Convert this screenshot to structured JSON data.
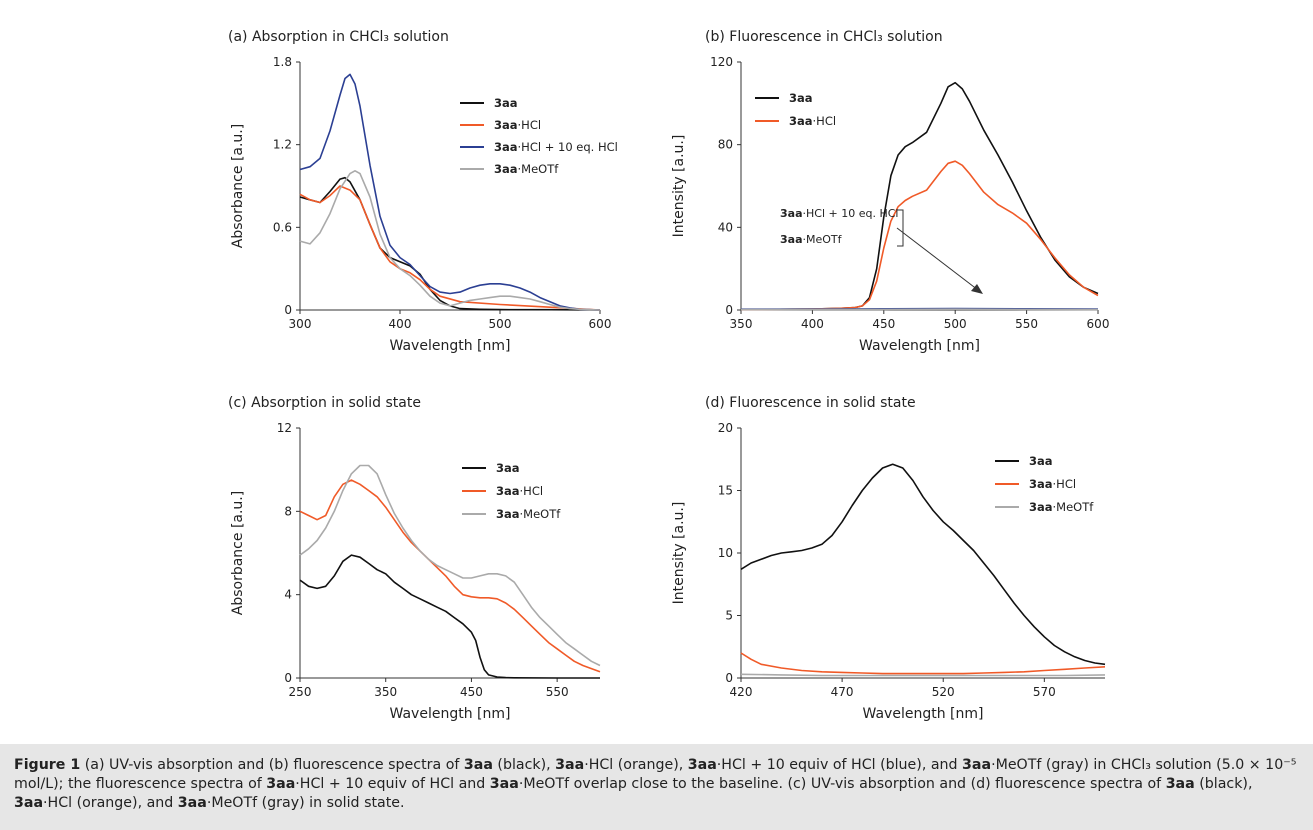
{
  "chart_data": [
    {
      "type": "line",
      "panel": "a",
      "title": "(a) Absorption in CHCl₃ solution",
      "xlabel": "Wavelength [nm]",
      "ylabel": "Absorbance [a.u.]",
      "xlim": [
        300,
        600
      ],
      "ylim": [
        0,
        1.8
      ],
      "xticks": [
        "300",
        "400",
        "500",
        "600"
      ],
      "yticks": [
        "0",
        "0.6",
        "1.2",
        "1.8"
      ],
      "legend_placement": "top-right",
      "series": [
        {
          "name": "3aa",
          "color": "#111111",
          "x": [
            300,
            310,
            320,
            330,
            340,
            345,
            350,
            360,
            370,
            380,
            390,
            400,
            410,
            420,
            430,
            440,
            450,
            460,
            480,
            500,
            550,
            600
          ],
          "y": [
            0.82,
            0.8,
            0.78,
            0.86,
            0.95,
            0.96,
            0.93,
            0.8,
            0.62,
            0.45,
            0.38,
            0.35,
            0.32,
            0.26,
            0.15,
            0.07,
            0.03,
            0.01,
            0.005,
            0.003,
            0.002,
            0.0
          ]
        },
        {
          "name": "3aa·HCl",
          "color": "#f05a28",
          "x": [
            300,
            310,
            320,
            330,
            340,
            350,
            360,
            370,
            380,
            390,
            400,
            410,
            420,
            430,
            440,
            460,
            500,
            550,
            600
          ],
          "y": [
            0.84,
            0.8,
            0.78,
            0.83,
            0.9,
            0.87,
            0.8,
            0.62,
            0.45,
            0.35,
            0.3,
            0.27,
            0.22,
            0.15,
            0.1,
            0.06,
            0.04,
            0.02,
            0.0
          ]
        },
        {
          "name": "3aa·HCl + 10 eq. HCl",
          "color": "#2b3f93",
          "x": [
            300,
            310,
            320,
            330,
            340,
            345,
            350,
            355,
            360,
            370,
            380,
            390,
            400,
            410,
            420,
            430,
            440,
            450,
            460,
            470,
            480,
            490,
            500,
            510,
            520,
            530,
            540,
            550,
            560,
            570,
            580,
            590,
            600
          ],
          "y": [
            1.02,
            1.04,
            1.1,
            1.3,
            1.56,
            1.68,
            1.71,
            1.64,
            1.48,
            1.05,
            0.68,
            0.47,
            0.38,
            0.33,
            0.25,
            0.17,
            0.13,
            0.12,
            0.13,
            0.16,
            0.18,
            0.19,
            0.19,
            0.18,
            0.16,
            0.13,
            0.09,
            0.06,
            0.03,
            0.015,
            0.005,
            0.002,
            0.0
          ]
        },
        {
          "name": "3aa·MeOTf",
          "color": "#aaaaaa",
          "x": [
            300,
            310,
            320,
            330,
            340,
            350,
            355,
            360,
            370,
            380,
            390,
            400,
            410,
            420,
            430,
            440,
            450,
            460,
            470,
            480,
            490,
            500,
            510,
            520,
            530,
            540,
            550,
            560,
            570,
            580,
            590,
            600
          ],
          "y": [
            0.5,
            0.48,
            0.56,
            0.7,
            0.88,
            0.99,
            1.01,
            0.99,
            0.82,
            0.55,
            0.38,
            0.3,
            0.25,
            0.18,
            0.1,
            0.05,
            0.03,
            0.05,
            0.07,
            0.08,
            0.09,
            0.1,
            0.1,
            0.09,
            0.08,
            0.06,
            0.04,
            0.02,
            0.01,
            0.005,
            0.002,
            0.0
          ]
        }
      ]
    },
    {
      "type": "line",
      "panel": "b",
      "title": "(b) Fluorescence in CHCl₃ solution",
      "xlabel": "Wavelength [nm]",
      "ylabel": "Intensity [a.u.]",
      "xlim": [
        350,
        600
      ],
      "ylim": [
        0,
        120
      ],
      "xticks": [
        "350",
        "400",
        "450",
        "500",
        "550",
        "600"
      ],
      "yticks": [
        "0",
        "40",
        "80",
        "120"
      ],
      "legend_placement": "top-left",
      "annotation": [
        "3aa·HCl + 10 eq. HCl",
        "3aa·MeOTf"
      ],
      "series": [
        {
          "name": "3aa",
          "color": "#111111",
          "x": [
            350,
            400,
            420,
            430,
            435,
            440,
            445,
            450,
            455,
            460,
            465,
            470,
            480,
            490,
            495,
            500,
            505,
            510,
            520,
            530,
            540,
            550,
            560,
            570,
            580,
            590,
            600
          ],
          "y": [
            0.2,
            0.5,
            0.8,
            1.2,
            2,
            6,
            20,
            45,
            65,
            75,
            79,
            81,
            86,
            100,
            108,
            110,
            107,
            101,
            87,
            75,
            62,
            48,
            35,
            24,
            16,
            11,
            8
          ]
        },
        {
          "name": "3aa·HCl",
          "color": "#f05a28",
          "x": [
            350,
            400,
            420,
            430,
            435,
            440,
            445,
            450,
            455,
            460,
            465,
            470,
            480,
            490,
            495,
            500,
            505,
            510,
            520,
            530,
            540,
            550,
            560,
            570,
            580,
            590,
            600
          ],
          "y": [
            0.2,
            0.5,
            0.8,
            1.2,
            2,
            5,
            14,
            30,
            43,
            50,
            53,
            55,
            58,
            67,
            71,
            72,
            70,
            66,
            57,
            51,
            47,
            42,
            34,
            25,
            17,
            11,
            7
          ]
        },
        {
          "name": "3aa·HCl + 10 eq. HCl",
          "color": "#2b3f93",
          "x": [
            350,
            400,
            450,
            500,
            550,
            600
          ],
          "y": [
            0.4,
            0.5,
            0.6,
            0.7,
            0.6,
            0.5
          ]
        },
        {
          "name": "3aa·MeOTf",
          "color": "#aaaaaa",
          "x": [
            350,
            400,
            450,
            500,
            550,
            600
          ],
          "y": [
            0.2,
            0.3,
            0.3,
            0.4,
            0.3,
            0.2
          ]
        }
      ]
    },
    {
      "type": "line",
      "panel": "c",
      "title": "(c) Absorption in solid state",
      "xlabel": "Wavelength [nm]",
      "ylabel": "Absorbance [a.u.]",
      "xlim": [
        250,
        600
      ],
      "ylim": [
        0,
        12
      ],
      "xticks": [
        "250",
        "350",
        "450",
        "550"
      ],
      "yticks": [
        "0",
        "4",
        "8",
        "12"
      ],
      "legend_placement": "top-right",
      "series": [
        {
          "name": "3aa",
          "color": "#111111",
          "x": [
            250,
            260,
            270,
            280,
            290,
            300,
            310,
            320,
            330,
            340,
            350,
            360,
            370,
            380,
            390,
            400,
            410,
            420,
            430,
            440,
            450,
            455,
            460,
            465,
            470,
            480,
            490,
            500,
            550,
            600
          ],
          "y": [
            4.7,
            4.4,
            4.3,
            4.4,
            4.9,
            5.6,
            5.9,
            5.8,
            5.5,
            5.2,
            5.0,
            4.6,
            4.3,
            4.0,
            3.8,
            3.6,
            3.4,
            3.2,
            2.9,
            2.6,
            2.2,
            1.8,
            1.0,
            0.4,
            0.15,
            0.05,
            0.02,
            0.01,
            0.0,
            0.0
          ]
        },
        {
          "name": "3aa·HCl",
          "color": "#f05a28",
          "x": [
            250,
            260,
            270,
            280,
            290,
            300,
            310,
            320,
            330,
            340,
            350,
            360,
            370,
            380,
            390,
            400,
            410,
            420,
            430,
            440,
            450,
            460,
            470,
            480,
            490,
            500,
            510,
            520,
            530,
            540,
            550,
            560,
            570,
            580,
            590,
            600
          ],
          "y": [
            8.0,
            7.8,
            7.6,
            7.8,
            8.7,
            9.3,
            9.5,
            9.3,
            9.0,
            8.7,
            8.2,
            7.6,
            7.0,
            6.5,
            6.1,
            5.7,
            5.3,
            4.9,
            4.4,
            4.0,
            3.9,
            3.85,
            3.85,
            3.8,
            3.6,
            3.3,
            2.9,
            2.5,
            2.1,
            1.7,
            1.4,
            1.1,
            0.8,
            0.6,
            0.45,
            0.3
          ]
        },
        {
          "name": "3aa·MeOTf",
          "color": "#aaaaaa",
          "x": [
            250,
            260,
            270,
            280,
            290,
            300,
            310,
            320,
            330,
            340,
            350,
            360,
            370,
            380,
            390,
            400,
            410,
            420,
            430,
            440,
            450,
            460,
            470,
            480,
            490,
            500,
            510,
            520,
            530,
            540,
            550,
            560,
            570,
            580,
            590,
            600
          ],
          "y": [
            5.9,
            6.2,
            6.6,
            7.2,
            8.0,
            9.0,
            9.8,
            10.2,
            10.2,
            9.8,
            8.8,
            7.9,
            7.2,
            6.6,
            6.1,
            5.7,
            5.4,
            5.2,
            5.0,
            4.8,
            4.8,
            4.9,
            5.0,
            5.0,
            4.9,
            4.6,
            4.0,
            3.4,
            2.9,
            2.5,
            2.1,
            1.7,
            1.4,
            1.1,
            0.8,
            0.6
          ]
        }
      ]
    },
    {
      "type": "line",
      "panel": "d",
      "title": "(d) Fluorescence in solid state",
      "xlabel": "Wavelength [nm]",
      "ylabel": "Intensity [a.u.]",
      "xlim": [
        420,
        600
      ],
      "ylim": [
        0,
        20
      ],
      "xticks": [
        "420",
        "470",
        "520",
        "570"
      ],
      "yticks": [
        "0",
        "5",
        "10",
        "15",
        "20"
      ],
      "legend_placement": "top-right",
      "series": [
        {
          "name": "3aa",
          "color": "#111111",
          "x": [
            420,
            425,
            430,
            435,
            440,
            445,
            450,
            455,
            460,
            465,
            470,
            475,
            480,
            485,
            490,
            495,
            500,
            505,
            510,
            515,
            520,
            525,
            530,
            535,
            540,
            545,
            550,
            555,
            560,
            565,
            570,
            575,
            580,
            585,
            590,
            595,
            600
          ],
          "y": [
            8.7,
            9.2,
            9.5,
            9.8,
            10.0,
            10.1,
            10.2,
            10.4,
            10.7,
            11.4,
            12.5,
            13.8,
            15.0,
            16.0,
            16.8,
            17.1,
            16.8,
            15.8,
            14.5,
            13.4,
            12.5,
            11.8,
            11.0,
            10.2,
            9.2,
            8.2,
            7.1,
            6.0,
            5.0,
            4.1,
            3.3,
            2.6,
            2.1,
            1.7,
            1.4,
            1.2,
            1.1
          ]
        },
        {
          "name": "3aa·HCl",
          "color": "#f05a28",
          "x": [
            420,
            425,
            430,
            440,
            450,
            460,
            470,
            480,
            490,
            500,
            510,
            520,
            530,
            540,
            550,
            560,
            570,
            580,
            590,
            600
          ],
          "y": [
            2.0,
            1.5,
            1.1,
            0.8,
            0.6,
            0.5,
            0.45,
            0.4,
            0.35,
            0.35,
            0.35,
            0.35,
            0.35,
            0.4,
            0.45,
            0.5,
            0.6,
            0.7,
            0.8,
            0.9
          ]
        },
        {
          "name": "3aa·MeOTf",
          "color": "#aaaaaa",
          "x": [
            420,
            440,
            460,
            480,
            500,
            520,
            540,
            560,
            580,
            600
          ],
          "y": [
            0.3,
            0.25,
            0.2,
            0.2,
            0.2,
            0.2,
            0.2,
            0.2,
            0.2,
            0.25
          ]
        }
      ]
    }
  ],
  "caption": [
    {
      "t": "Figure 1",
      "b": true
    },
    {
      "t": "   (a) UV-vis absorption and (b) fluorescence spectra of ",
      "b": false
    },
    {
      "t": "3aa",
      "b": true
    },
    {
      "t": " (black), ",
      "b": false
    },
    {
      "t": "3aa",
      "b": true
    },
    {
      "t": "·HCl (orange), ",
      "b": false
    },
    {
      "t": "3aa",
      "b": true
    },
    {
      "t": "·HCl + 10 equiv of HCl (blue), and ",
      "b": false
    },
    {
      "t": "3aa",
      "b": true
    },
    {
      "t": "·MeOTf (gray) in CHCl₃ solution (5.0 × 10⁻⁵ mol/L); the fluorescence spectra of ",
      "b": false
    },
    {
      "t": "3aa",
      "b": true
    },
    {
      "t": "·HCl + 10 equiv of HCl and ",
      "b": false
    },
    {
      "t": "3aa",
      "b": true
    },
    {
      "t": "·MeOTf overlap close to the baseline. (c) UV-vis absorption and (d) fluorescence spectra of ",
      "b": false
    },
    {
      "t": "3aa",
      "b": true
    },
    {
      "t": " (black), ",
      "b": false
    },
    {
      "t": "3aa",
      "b": true
    },
    {
      "t": "·HCl (orange), and ",
      "b": false
    },
    {
      "t": "3aa",
      "b": true
    },
    {
      "t": "·MeOTf (gray) in solid state.",
      "b": false
    }
  ]
}
